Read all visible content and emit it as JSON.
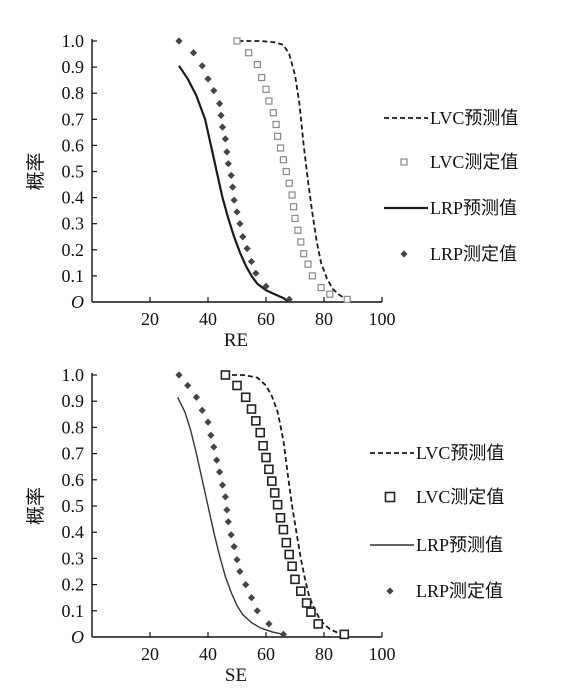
{
  "chart_data": [
    {
      "type": "line",
      "xlabel": "RE",
      "ylabel": "概率",
      "xlim": [
        0,
        100
      ],
      "ylim": [
        0,
        1.0
      ],
      "x_ticks": [
        20,
        40,
        60,
        80,
        100
      ],
      "y_ticks": [
        {
          "v": 0.0,
          "label": "O"
        },
        {
          "v": 0.1,
          "label": "0.1"
        },
        {
          "v": 0.2,
          "label": "0.2"
        },
        {
          "v": 0.3,
          "label": "0.3"
        },
        {
          "v": 0.4,
          "label": "0.4"
        },
        {
          "v": 0.5,
          "label": "0.5"
        },
        {
          "v": 0.6,
          "label": "0.6"
        },
        {
          "v": 0.7,
          "label": "0.7"
        },
        {
          "v": 0.8,
          "label": "0.8"
        },
        {
          "v": 0.9,
          "label": "0.9"
        },
        {
          "v": 1.0,
          "label": "1.0"
        }
      ],
      "grid": false,
      "legend_position": "right",
      "series": [
        {
          "name": "LVC预测值",
          "style": "dashed-line",
          "points": [
            [
              50.5,
              1.0
            ],
            [
              58,
              1.0
            ],
            [
              63,
              0.995
            ],
            [
              66,
              0.985
            ],
            [
              68,
              0.95
            ],
            [
              70,
              0.87
            ],
            [
              71.5,
              0.76
            ],
            [
              73,
              0.6
            ],
            [
              74.5,
              0.46
            ],
            [
              76,
              0.34
            ],
            [
              77.5,
              0.23
            ],
            [
              79,
              0.15
            ],
            [
              81,
              0.09
            ],
            [
              83,
              0.05
            ],
            [
              85,
              0.03
            ],
            [
              87,
              0.015
            ],
            [
              88,
              0.01
            ]
          ]
        },
        {
          "name": "LVC测定值",
          "style": "hollow-square",
          "points": [
            [
              50,
              1.0
            ],
            [
              54,
              0.955
            ],
            [
              57,
              0.91
            ],
            [
              58.5,
              0.86
            ],
            [
              60,
              0.815
            ],
            [
              61,
              0.77
            ],
            [
              62.5,
              0.725
            ],
            [
              63.5,
              0.68
            ],
            [
              64,
              0.635
            ],
            [
              65,
              0.59
            ],
            [
              66,
              0.545
            ],
            [
              67,
              0.5
            ],
            [
              68,
              0.455
            ],
            [
              69,
              0.41
            ],
            [
              69.5,
              0.365
            ],
            [
              70,
              0.32
            ],
            [
              71,
              0.275
            ],
            [
              72,
              0.23
            ],
            [
              73,
              0.185
            ],
            [
              74.5,
              0.145
            ],
            [
              76,
              0.1
            ],
            [
              79,
              0.055
            ],
            [
              82,
              0.03
            ],
            [
              88,
              0.01
            ]
          ]
        },
        {
          "name": "LRP预测值",
          "style": "solid-line",
          "points": [
            [
              30,
              0.905
            ],
            [
              33,
              0.855
            ],
            [
              36,
              0.79
            ],
            [
              39,
              0.7
            ],
            [
              41,
              0.6
            ],
            [
              43,
              0.5
            ],
            [
              45,
              0.4
            ],
            [
              47,
              0.32
            ],
            [
              49,
              0.25
            ],
            [
              51,
              0.19
            ],
            [
              53,
              0.14
            ],
            [
              55,
              0.1
            ],
            [
              57,
              0.07
            ],
            [
              60,
              0.045
            ],
            [
              63,
              0.03
            ],
            [
              66,
              0.015
            ],
            [
              68,
              0.0
            ]
          ]
        },
        {
          "name": "LRP测定值",
          "style": "filled-diamond",
          "points": [
            [
              30,
              1.0
            ],
            [
              35,
              0.955
            ],
            [
              38,
              0.905
            ],
            [
              40,
              0.855
            ],
            [
              42,
              0.81
            ],
            [
              44,
              0.76
            ],
            [
              44.5,
              0.715
            ],
            [
              45,
              0.67
            ],
            [
              46,
              0.625
            ],
            [
              46.5,
              0.575
            ],
            [
              47,
              0.53
            ],
            [
              48,
              0.485
            ],
            [
              48.5,
              0.44
            ],
            [
              49,
              0.39
            ],
            [
              50,
              0.345
            ],
            [
              51,
              0.3
            ],
            [
              52,
              0.25
            ],
            [
              53.5,
              0.205
            ],
            [
              55,
              0.155
            ],
            [
              56.5,
              0.11
            ],
            [
              60,
              0.06
            ],
            [
              68,
              0.01
            ]
          ]
        }
      ]
    },
    {
      "type": "line",
      "xlabel": "SE",
      "ylabel": "概率",
      "xlim": [
        0,
        100
      ],
      "ylim": [
        0,
        1.0
      ],
      "x_ticks": [
        20,
        40,
        60,
        80,
        100
      ],
      "y_ticks": [
        {
          "v": 0.0,
          "label": "O"
        },
        {
          "v": 0.1,
          "label": "0.1"
        },
        {
          "v": 0.2,
          "label": "0.2"
        },
        {
          "v": 0.3,
          "label": "0.3"
        },
        {
          "v": 0.4,
          "label": "0.4"
        },
        {
          "v": 0.5,
          "label": "0.5"
        },
        {
          "v": 0.6,
          "label": "0.6"
        },
        {
          "v": 0.7,
          "label": "0.7"
        },
        {
          "v": 0.8,
          "label": "0.8"
        },
        {
          "v": 0.9,
          "label": "0.9"
        },
        {
          "v": 1.0,
          "label": "1.0"
        }
      ],
      "grid": false,
      "legend_position": "right",
      "series": [
        {
          "name": "LVC预测值",
          "style": "dashed-line",
          "points": [
            [
              45.5,
              1.0
            ],
            [
              52,
              1.0
            ],
            [
              57,
              0.99
            ],
            [
              60,
              0.96
            ],
            [
              62,
              0.92
            ],
            [
              64,
              0.86
            ],
            [
              66,
              0.75
            ],
            [
              67.5,
              0.62
            ],
            [
              69,
              0.5
            ],
            [
              70.5,
              0.4
            ],
            [
              72,
              0.3
            ],
            [
              73.5,
              0.22
            ],
            [
              75,
              0.15
            ],
            [
              77,
              0.1
            ],
            [
              79,
              0.06
            ],
            [
              82,
              0.03
            ],
            [
              85,
              0.015
            ],
            [
              87,
              0.01
            ]
          ]
        },
        {
          "name": "LVC测定值",
          "style": "hollow-square",
          "points": [
            [
              46,
              1.0
            ],
            [
              50,
              0.96
            ],
            [
              53,
              0.915
            ],
            [
              55,
              0.87
            ],
            [
              56.5,
              0.825
            ],
            [
              58,
              0.78
            ],
            [
              59,
              0.73
            ],
            [
              60,
              0.685
            ],
            [
              61,
              0.64
            ],
            [
              62,
              0.595
            ],
            [
              63,
              0.55
            ],
            [
              64,
              0.505
            ],
            [
              65,
              0.455
            ],
            [
              66,
              0.41
            ],
            [
              67,
              0.36
            ],
            [
              68,
              0.315
            ],
            [
              69,
              0.27
            ],
            [
              70,
              0.22
            ],
            [
              72,
              0.175
            ],
            [
              74,
              0.13
            ],
            [
              75.5,
              0.095
            ],
            [
              78,
              0.05
            ],
            [
              87,
              0.01
            ]
          ]
        },
        {
          "name": "LRP预测值",
          "style": "thin-solid-line",
          "points": [
            [
              29.5,
              0.915
            ],
            [
              32,
              0.86
            ],
            [
              34,
              0.79
            ],
            [
              36,
              0.7
            ],
            [
              38,
              0.6
            ],
            [
              40,
              0.5
            ],
            [
              42,
              0.4
            ],
            [
              44,
              0.31
            ],
            [
              46,
              0.23
            ],
            [
              48,
              0.17
            ],
            [
              50,
              0.12
            ],
            [
              52,
              0.085
            ],
            [
              55,
              0.055
            ],
            [
              58,
              0.035
            ],
            [
              62,
              0.02
            ],
            [
              66,
              0.01
            ]
          ]
        },
        {
          "name": "LRP测定值",
          "style": "filled-diamond",
          "points": [
            [
              30,
              1.0
            ],
            [
              33,
              0.96
            ],
            [
              36,
              0.915
            ],
            [
              38,
              0.865
            ],
            [
              40,
              0.82
            ],
            [
              41,
              0.77
            ],
            [
              42,
              0.725
            ],
            [
              43,
              0.675
            ],
            [
              44,
              0.63
            ],
            [
              45,
              0.58
            ],
            [
              46,
              0.535
            ],
            [
              46.5,
              0.485
            ],
            [
              47,
              0.44
            ],
            [
              48,
              0.39
            ],
            [
              49,
              0.345
            ],
            [
              50,
              0.295
            ],
            [
              51,
              0.25
            ],
            [
              53,
              0.2
            ],
            [
              55,
              0.15
            ],
            [
              57,
              0.1
            ],
            [
              61,
              0.05
            ],
            [
              66,
              0.01
            ]
          ]
        }
      ]
    }
  ]
}
